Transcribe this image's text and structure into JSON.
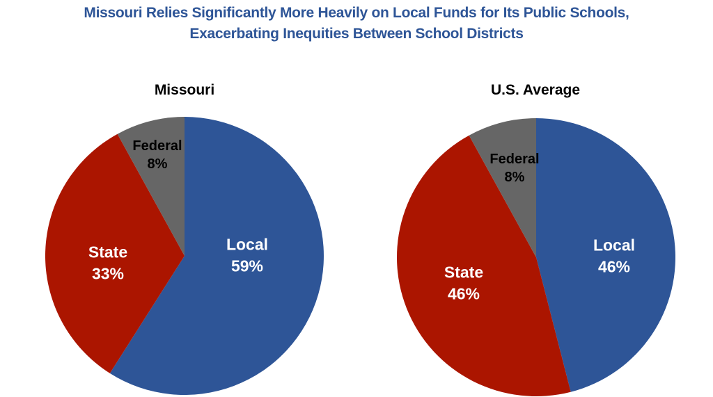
{
  "title": {
    "line1": "Missouri Relies Significantly More Heavily on Local Funds for Its Public Schools,",
    "line2": "Exacerbating Inequities Between School Districts"
  },
  "colors": {
    "title": "#2e5597",
    "local": "#2e5597",
    "state": "#ab1500",
    "federal": "#666666"
  },
  "chart_data": [
    {
      "type": "pie",
      "title": "Missouri",
      "slices": [
        {
          "label": "Local",
          "value": 59,
          "display": "59%",
          "color": "#2e5597",
          "text_color": "#ffffff"
        },
        {
          "label": "State",
          "value": 33,
          "display": "33%",
          "color": "#ab1500",
          "text_color": "#ffffff"
        },
        {
          "label": "Federal",
          "value": 8,
          "display": "8%",
          "color": "#666666",
          "text_color": "#000000"
        }
      ]
    },
    {
      "type": "pie",
      "title": "U.S. Average",
      "slices": [
        {
          "label": "Local",
          "value": 46,
          "display": "46%",
          "color": "#2e5597",
          "text_color": "#ffffff"
        },
        {
          "label": "State",
          "value": 46,
          "display": "46%",
          "color": "#ab1500",
          "text_color": "#ffffff"
        },
        {
          "label": "Federal",
          "value": 8,
          "display": "8%",
          "color": "#666666",
          "text_color": "#000000"
        }
      ]
    }
  ]
}
